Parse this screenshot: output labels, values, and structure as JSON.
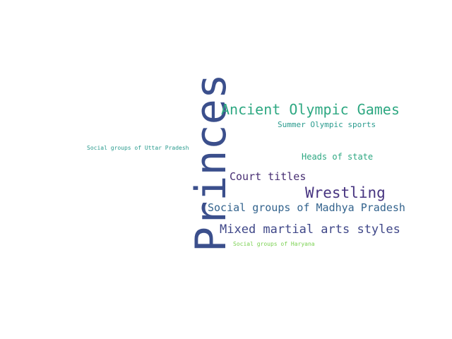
{
  "word_cloud": {
    "words": [
      {
        "id": "princes",
        "text": "Princes",
        "color": "#3b4f8c"
      },
      {
        "id": "ancient",
        "text": "Ancient Olympic Games",
        "color": "#2ea882"
      },
      {
        "id": "summer",
        "text": "Summer Olympic sports",
        "color": "#2a9b8e"
      },
      {
        "id": "uttar",
        "text": "Social groups of Uttar Pradesh",
        "color": "#2a9b8e"
      },
      {
        "id": "heads",
        "text": "Heads of state",
        "color": "#2ea882"
      },
      {
        "id": "court",
        "text": "Court titles",
        "color": "#482f73"
      },
      {
        "id": "wrestling",
        "text": "Wrestling",
        "color": "#473480"
      },
      {
        "id": "madhya",
        "text": "Social groups of Madhya Pradesh",
        "color": "#33638d"
      },
      {
        "id": "mma",
        "text": "Mixed martial arts styles",
        "color": "#3f4788"
      },
      {
        "id": "haryana",
        "text": "Social groups of Haryana",
        "color": "#7ad151"
      }
    ]
  }
}
